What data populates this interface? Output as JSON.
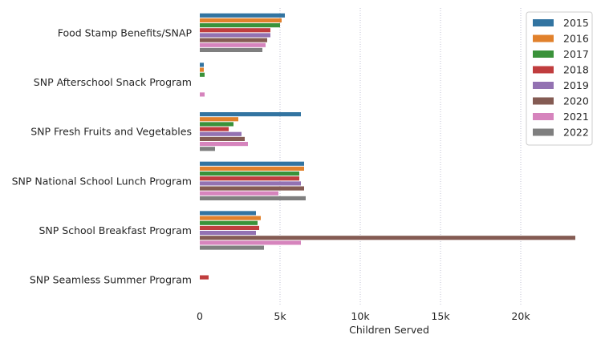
{
  "chart_data": {
    "type": "bar",
    "orientation": "horizontal",
    "categories": [
      "Food Stamp Benefits/SNAP",
      "SNP Afterschool Snack Program",
      "SNP Fresh Fruits and Vegetables",
      "SNP National School Lunch Program",
      "SNP School Breakfast Program",
      "SNP Seamless Summer Program"
    ],
    "series": [
      {
        "name": "2015",
        "color": "#3274a1",
        "values": [
          5300,
          250,
          6300,
          6500,
          3500,
          0
        ]
      },
      {
        "name": "2016",
        "color": "#e1812c",
        "values": [
          5100,
          250,
          2400,
          6500,
          3800,
          0
        ]
      },
      {
        "name": "2017",
        "color": "#3a923a",
        "values": [
          5000,
          300,
          2100,
          6200,
          3600,
          0
        ]
      },
      {
        "name": "2018",
        "color": "#c03d3e",
        "values": [
          4400,
          0,
          1800,
          6200,
          3700,
          550
        ]
      },
      {
        "name": "2019",
        "color": "#9372b2",
        "values": [
          4400,
          0,
          2600,
          6300,
          3500,
          0
        ]
      },
      {
        "name": "2020",
        "color": "#845b53",
        "values": [
          4200,
          0,
          2800,
          6500,
          23400,
          0
        ]
      },
      {
        "name": "2021",
        "color": "#d684bd",
        "values": [
          4100,
          300,
          3000,
          4900,
          6300,
          0
        ]
      },
      {
        "name": "2022",
        "color": "#7f7f7f",
        "values": [
          3900,
          0,
          950,
          6600,
          4000,
          0
        ]
      }
    ],
    "xlabel": "Children Served",
    "ylabel": "",
    "xlim": [
      0,
      23600
    ],
    "xticks": [
      0,
      5000,
      10000,
      15000,
      20000
    ],
    "xtick_labels": [
      "0",
      "5k",
      "10k",
      "15k",
      "20k"
    ],
    "grid": "vertical dotted",
    "legend_position": "upper-right"
  }
}
